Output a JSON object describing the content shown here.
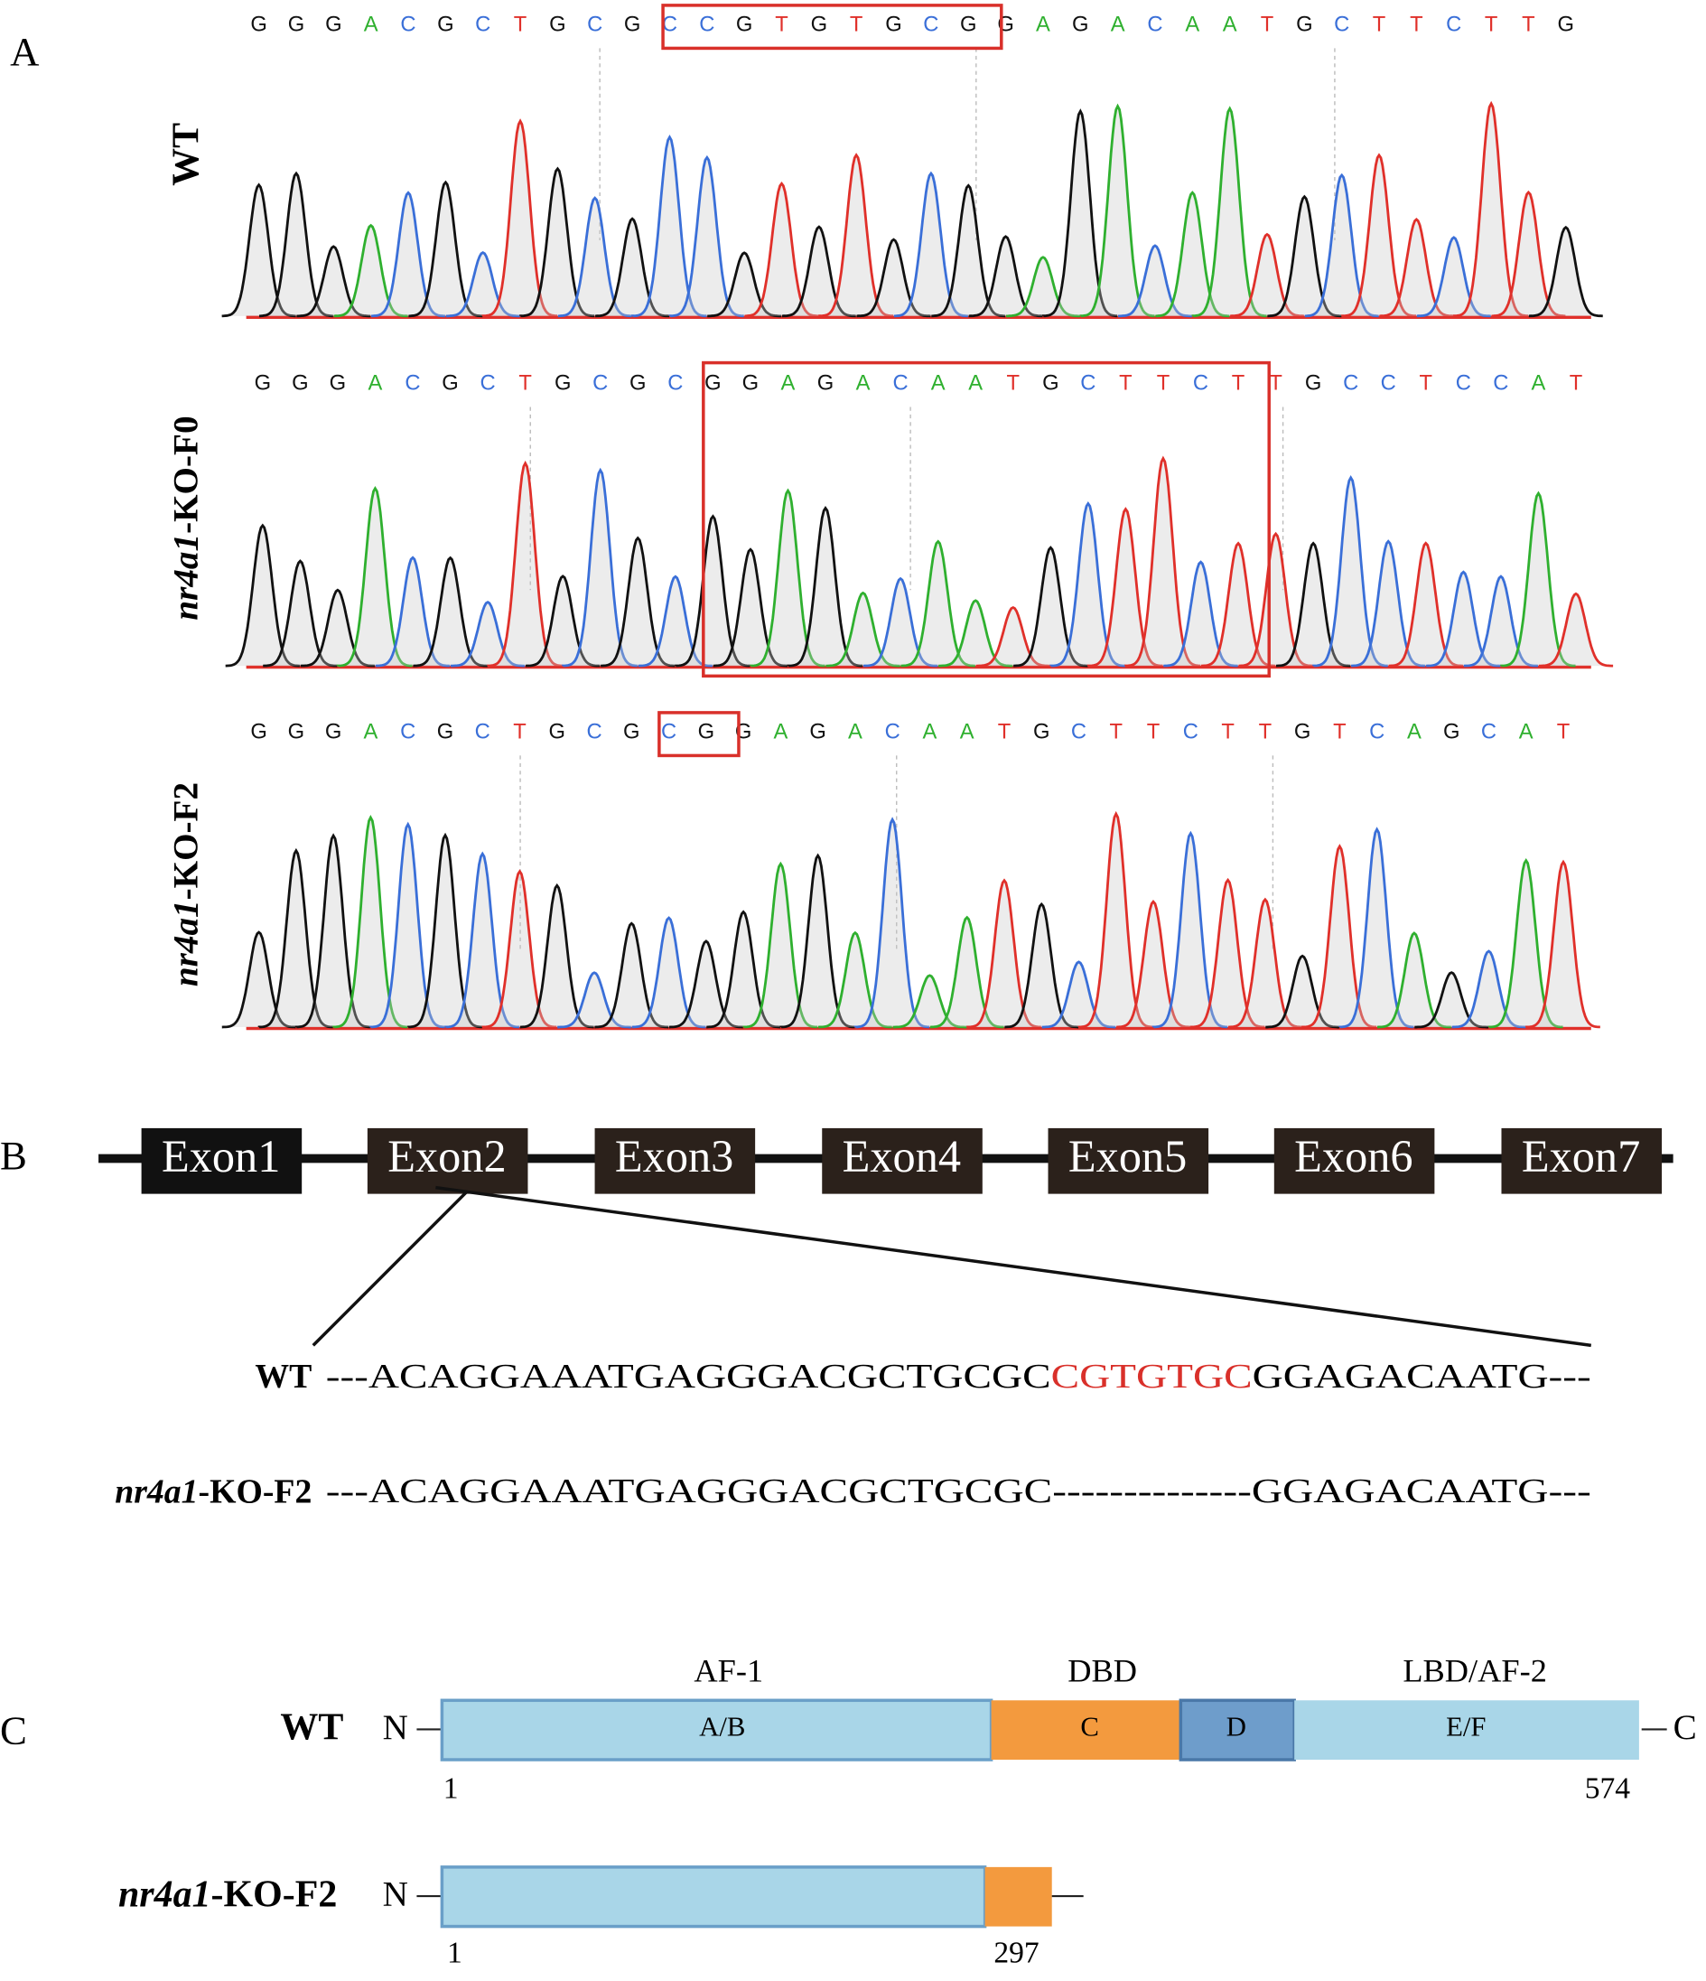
{
  "panel_a": {
    "label": "A",
    "traces": [
      {
        "name": "WT",
        "sequence": [
          "G",
          "G",
          "G",
          "A",
          "C",
          "G",
          "C",
          "T",
          "G",
          "C",
          "G",
          "C",
          "C",
          "G",
          "T",
          "G",
          "T",
          "G",
          "C",
          "G",
          "G",
          "A",
          "G",
          "A",
          "C",
          "A",
          "A",
          "T",
          "G",
          "C",
          "T",
          "T",
          "C",
          "T",
          "T",
          "G"
        ]
      },
      {
        "gene": "nr4a1",
        "suffix": "-KO-F0",
        "sequence": [
          "G",
          "G",
          "G",
          "A",
          "C",
          "G",
          "C",
          "T",
          "G",
          "C",
          "G",
          "C",
          "G",
          "G",
          "A",
          "G",
          "A",
          "C",
          "A",
          "A",
          "T",
          "G",
          "C",
          "T",
          "T",
          "C",
          "T",
          "T",
          "G",
          "C",
          "C",
          "T",
          "C",
          "C",
          "A",
          "T"
        ]
      },
      {
        "gene": "nr4a1",
        "suffix": "-KO-F2",
        "sequence": [
          "G",
          "G",
          "G",
          "A",
          "C",
          "G",
          "C",
          "T",
          "G",
          "C",
          "G",
          "C",
          "G",
          "G",
          "A",
          "G",
          "A",
          "C",
          "A",
          "A",
          "T",
          "G",
          "C",
          "T",
          "T",
          "C",
          "T",
          "T",
          "G",
          "T",
          "C",
          "A",
          "G",
          "C",
          "A",
          "T"
        ]
      }
    ]
  },
  "panel_b": {
    "label": "B",
    "exons": [
      "Exon1",
      "Exon2",
      "Exon3",
      "Exon4",
      "Exon5",
      "Exon6",
      "Exon7"
    ],
    "wt": {
      "name": "WT",
      "prefix": "---ACAGGAAATGAGGGACGCTGCGC",
      "deleted": "CGTGTGC",
      "suffix": "GGAGACAATG---"
    },
    "mutant": {
      "gene": "nr4a1",
      "suffix": "-KO-F2",
      "sequence": "---ACAGGAAATGAGGGACGCTGCGC--------------GGAGACAATG---"
    }
  },
  "panel_c": {
    "label": "C",
    "domains": [
      "AF-1",
      "DBD",
      "LBD/AF-2"
    ],
    "regions": [
      "A/B",
      "C",
      "D",
      "E/F"
    ],
    "wt": {
      "name": "WT",
      "n_term": "N",
      "c_term": "C",
      "start": 1,
      "end": 574
    },
    "mutant": {
      "gene": "nr4a1",
      "suffix": "-KO-F2",
      "n_term": "N",
      "start": 1,
      "end": 297
    }
  }
}
